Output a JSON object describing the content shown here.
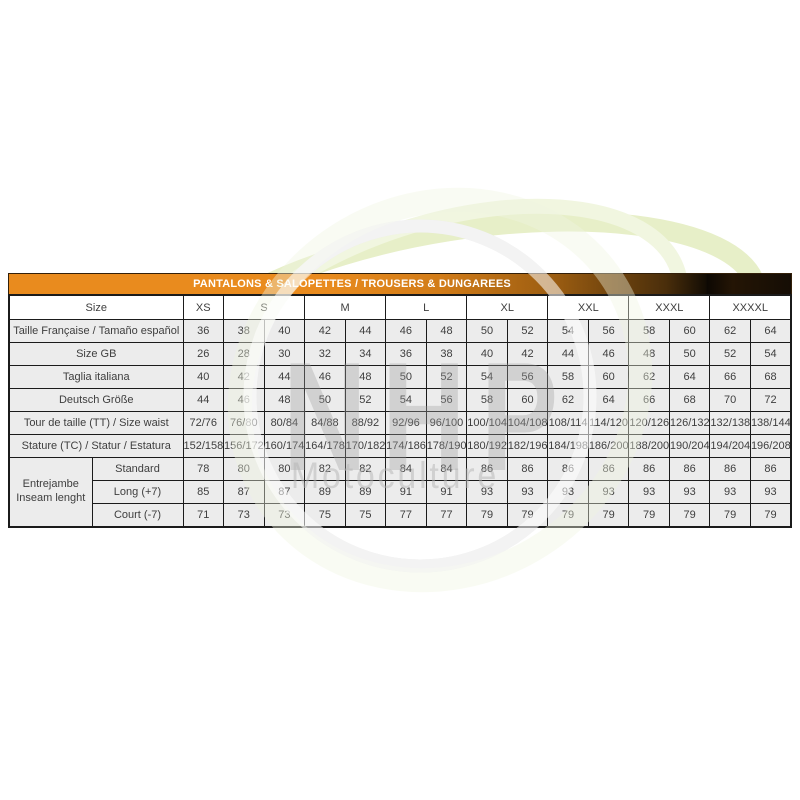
{
  "banner": {
    "title": "PANTALONS & SALOPETTES / TROUSERS & DUNGAREES"
  },
  "colors": {
    "banner_orange": "#e98b1e",
    "banner_dark": "#140d04",
    "row_background": "#ececec",
    "table_border": "#1b1b1b",
    "cell_text": "#3e3e3e",
    "watermark_gray": "#c9c9c9",
    "watermark_green": "#e9f1cc"
  },
  "watermark": {
    "brand": "NHP",
    "subbrand": "Motoculture",
    "icons": [
      "leaf-swoosh-icon",
      "ring-icon"
    ]
  },
  "table": {
    "size_label": "Size",
    "size_groups": [
      {
        "label": "XS",
        "span": 1
      },
      {
        "label": "S",
        "span": 2
      },
      {
        "label": "M",
        "span": 2
      },
      {
        "label": "L",
        "span": 2
      },
      {
        "label": "XL",
        "span": 2
      },
      {
        "label": "XXL",
        "span": 2
      },
      {
        "label": "XXXL",
        "span": 2
      },
      {
        "label": "XXXXL",
        "span": 2
      }
    ],
    "rows": [
      {
        "label": "Taille Française / Tamaño español",
        "values": [
          "36",
          "38",
          "40",
          "42",
          "44",
          "46",
          "48",
          "50",
          "52",
          "54",
          "56",
          "58",
          "60",
          "62",
          "64"
        ]
      },
      {
        "label": "Size GB",
        "values": [
          "26",
          "28",
          "30",
          "32",
          "34",
          "36",
          "38",
          "40",
          "42",
          "44",
          "46",
          "48",
          "50",
          "52",
          "54"
        ]
      },
      {
        "label": "Taglia italiana",
        "values": [
          "40",
          "42",
          "44",
          "46",
          "48",
          "50",
          "52",
          "54",
          "56",
          "58",
          "60",
          "62",
          "64",
          "66",
          "68"
        ]
      },
      {
        "label": "Deutsch Größe",
        "values": [
          "44",
          "46",
          "48",
          "50",
          "52",
          "54",
          "56",
          "58",
          "60",
          "62",
          "64",
          "66",
          "68",
          "70",
          "72"
        ]
      },
      {
        "label": "Tour de taille (TT) / Size waist",
        "values": [
          "72/76",
          "76/80",
          "80/84",
          "84/88",
          "88/92",
          "92/96",
          "96/100",
          "100/104",
          "104/108",
          "108/114",
          "114/120",
          "120/126",
          "126/132",
          "132/138",
          "138/144"
        ]
      },
      {
        "label": "Stature (TC) / Statur / Estatura",
        "values": [
          "152/158",
          "156/172",
          "160/174",
          "164/178",
          "170/182",
          "174/186",
          "178/190",
          "180/192",
          "182/196",
          "184/198",
          "186/200",
          "188/200",
          "190/204",
          "194/204",
          "196/208"
        ]
      }
    ],
    "inseam_group": {
      "label_line1": "Entrejambe",
      "label_line2": "Inseam lenght",
      "rows": [
        {
          "label": "Standard",
          "values": [
            "78",
            "80",
            "80",
            "82",
            "82",
            "84",
            "84",
            "86",
            "86",
            "86",
            "86",
            "86",
            "86",
            "86",
            "86"
          ]
        },
        {
          "label": "Long (+7)",
          "values": [
            "85",
            "87",
            "87",
            "89",
            "89",
            "91",
            "91",
            "93",
            "93",
            "93",
            "93",
            "93",
            "93",
            "93",
            "93"
          ]
        },
        {
          "label": "Court (-7)",
          "values": [
            "71",
            "73",
            "73",
            "75",
            "75",
            "77",
            "77",
            "79",
            "79",
            "79",
            "79",
            "79",
            "79",
            "79",
            "79"
          ]
        }
      ]
    }
  }
}
